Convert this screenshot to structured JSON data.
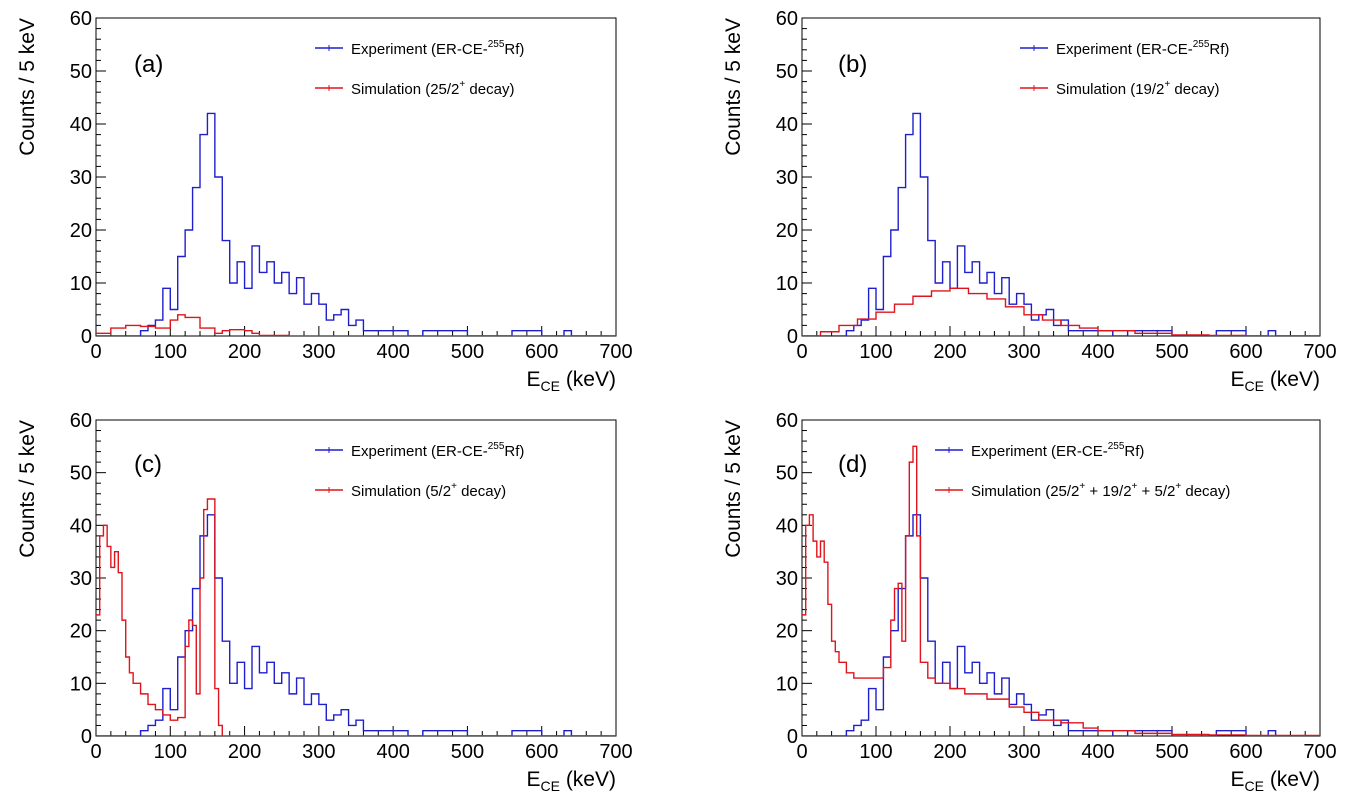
{
  "figure": {
    "panels": [
      "(a)",
      "(b)",
      "(c)",
      "(d)"
    ]
  },
  "colors": {
    "experiment": "#1f1fcc",
    "simulation": "#e0141c",
    "axis": "#000000"
  },
  "chart_data": [
    {
      "type": "line",
      "panel_label": "(a)",
      "xlabel": "E",
      "xlabel_sub": "CE",
      "xlabel_unit": " (keV)",
      "ylabel": "Counts / 5 keV",
      "xlim": [
        0,
        700
      ],
      "ylim": [
        0,
        60
      ],
      "x_ticks": [
        "0",
        "100",
        "200",
        "300",
        "400",
        "500",
        "600",
        "700"
      ],
      "y_ticks": [
        "0",
        "10",
        "20",
        "30",
        "40",
        "50",
        "60"
      ],
      "legend": [
        {
          "pre": "Experiment (ER-CE-",
          "sup": "255",
          "post": "Rf)",
          "series": 0
        },
        {
          "pre": "Simulation (25/2",
          "sup": "+",
          "post": " decay)",
          "series": 1
        }
      ],
      "series": [
        {
          "name": "Experiment (ER-CE-255Rf)",
          "color": "#1f1fcc",
          "x": [
            0,
            50,
            60,
            70,
            80,
            90,
            100,
            110,
            120,
            130,
            140,
            150,
            160,
            170,
            180,
            190,
            200,
            210,
            220,
            230,
            240,
            250,
            260,
            270,
            280,
            290,
            300,
            310,
            320,
            330,
            340,
            350,
            360,
            380,
            400,
            420,
            440,
            460,
            480,
            500,
            520,
            560,
            600,
            630,
            640,
            700
          ],
          "y": [
            0,
            0,
            1,
            2,
            3,
            9,
            5,
            15,
            20,
            28,
            38,
            42,
            30,
            18,
            10,
            14,
            9,
            17,
            12,
            14,
            10,
            12,
            8,
            11,
            6,
            8,
            6,
            3,
            4,
            5,
            2,
            3,
            1,
            1,
            1,
            0,
            1,
            1,
            1,
            0,
            0,
            1,
            0,
            1,
            0,
            0
          ]
        },
        {
          "name": "Simulation (25/2+ decay)",
          "color": "#e0141c",
          "x": [
            0,
            20,
            40,
            60,
            80,
            100,
            110,
            120,
            140,
            160,
            170,
            180,
            200,
            210,
            220,
            260,
            300,
            700
          ],
          "y": [
            0.5,
            1.5,
            2,
            1.8,
            1.5,
            3,
            4,
            3.5,
            1.5,
            0.5,
            1,
            1.2,
            1,
            0.5,
            0.1,
            0,
            0,
            0
          ]
        }
      ]
    },
    {
      "type": "line",
      "panel_label": "(b)",
      "xlabel": "E",
      "xlabel_sub": "CE",
      "xlabel_unit": " (keV)",
      "ylabel": "Counts / 5 keV",
      "xlim": [
        0,
        700
      ],
      "ylim": [
        0,
        60
      ],
      "x_ticks": [
        "0",
        "100",
        "200",
        "300",
        "400",
        "500",
        "600",
        "700"
      ],
      "y_ticks": [
        "0",
        "10",
        "20",
        "30",
        "40",
        "50",
        "60"
      ],
      "legend": [
        {
          "pre": "Experiment (ER-CE-",
          "sup": "255",
          "post": "Rf)",
          "series": 0
        },
        {
          "pre": "Simulation (19/2",
          "sup": "+",
          "post": " decay)",
          "series": 1
        }
      ],
      "series": [
        {
          "name": "Experiment (ER-CE-255Rf)",
          "color": "#1f1fcc",
          "x": [
            0,
            50,
            60,
            70,
            80,
            90,
            100,
            110,
            120,
            130,
            140,
            150,
            160,
            170,
            180,
            190,
            200,
            210,
            220,
            230,
            240,
            250,
            260,
            270,
            280,
            290,
            300,
            310,
            320,
            330,
            340,
            350,
            360,
            380,
            400,
            420,
            440,
            460,
            480,
            500,
            520,
            560,
            600,
            630,
            640,
            700
          ],
          "y": [
            0,
            0,
            1,
            2,
            3,
            9,
            5,
            15,
            20,
            28,
            38,
            42,
            30,
            18,
            10,
            14,
            9,
            17,
            12,
            14,
            10,
            12,
            8,
            11,
            6,
            8,
            6,
            3,
            4,
            5,
            2,
            3,
            1,
            1,
            1,
            0,
            1,
            1,
            1,
            0,
            0,
            1,
            0,
            1,
            0,
            0
          ]
        },
        {
          "name": "Simulation (19/2+ decay)",
          "color": "#e0141c",
          "x": [
            0,
            25,
            50,
            75,
            100,
            125,
            150,
            175,
            200,
            225,
            250,
            275,
            300,
            325,
            350,
            375,
            400,
            450,
            500,
            550,
            600,
            700
          ],
          "y": [
            0,
            0.8,
            2,
            3.2,
            4.5,
            6,
            7.5,
            8.5,
            9,
            8,
            7,
            5.5,
            4,
            3,
            2,
            1.5,
            1,
            0.5,
            0.2,
            0.1,
            0,
            0
          ]
        }
      ]
    },
    {
      "type": "line",
      "panel_label": "(c)",
      "xlabel": "E",
      "xlabel_sub": "CE",
      "xlabel_unit": " (keV)",
      "ylabel": "Counts / 5 keV",
      "xlim": [
        0,
        700
      ],
      "ylim": [
        0,
        60
      ],
      "x_ticks": [
        "0",
        "100",
        "200",
        "300",
        "400",
        "500",
        "600",
        "700"
      ],
      "y_ticks": [
        "0",
        "10",
        "20",
        "30",
        "40",
        "50",
        "60"
      ],
      "legend": [
        {
          "pre": "Experiment (ER-CE-",
          "sup": "255",
          "post": "Rf)",
          "series": 0
        },
        {
          "pre": "Simulation (5/2",
          "sup": "+",
          "post": " decay)",
          "series": 1
        }
      ],
      "series": [
        {
          "name": "Experiment (ER-CE-255Rf)",
          "color": "#1f1fcc",
          "x": [
            0,
            50,
            60,
            70,
            80,
            90,
            100,
            110,
            120,
            130,
            140,
            150,
            160,
            170,
            180,
            190,
            200,
            210,
            220,
            230,
            240,
            250,
            260,
            270,
            280,
            290,
            300,
            310,
            320,
            330,
            340,
            350,
            360,
            380,
            400,
            420,
            440,
            460,
            480,
            500,
            520,
            560,
            600,
            630,
            640,
            700
          ],
          "y": [
            0,
            0,
            1,
            2,
            3,
            9,
            5,
            15,
            20,
            28,
            38,
            42,
            30,
            18,
            10,
            14,
            9,
            17,
            12,
            14,
            10,
            12,
            8,
            11,
            6,
            8,
            6,
            3,
            4,
            5,
            2,
            3,
            1,
            1,
            1,
            0,
            1,
            1,
            1,
            0,
            0,
            1,
            0,
            1,
            0,
            0
          ]
        },
        {
          "name": "Simulation (5/2+ decay)",
          "color": "#e0141c",
          "x": [
            0,
            5,
            10,
            15,
            20,
            25,
            30,
            35,
            40,
            45,
            50,
            60,
            70,
            80,
            90,
            100,
            110,
            120,
            125,
            130,
            135,
            140,
            145,
            150,
            155,
            160,
            165,
            170,
            200,
            700
          ],
          "y": [
            23,
            38,
            40,
            36,
            32,
            35,
            31,
            22,
            15,
            12,
            10,
            8,
            6,
            5,
            4,
            3,
            3.5,
            17,
            22,
            21,
            8,
            30,
            43,
            45,
            45,
            9,
            2,
            0,
            0,
            0
          ]
        }
      ]
    },
    {
      "type": "line",
      "panel_label": "(d)",
      "xlabel": "E",
      "xlabel_sub": "CE",
      "xlabel_unit": " (keV)",
      "ylabel": "Counts / 5 keV",
      "xlim": [
        0,
        700
      ],
      "ylim": [
        0,
        60
      ],
      "x_ticks": [
        "0",
        "100",
        "200",
        "300",
        "400",
        "500",
        "600",
        "700"
      ],
      "y_ticks": [
        "0",
        "10",
        "20",
        "30",
        "40",
        "50",
        "60"
      ],
      "legend": [
        {
          "pre": "Experiment (ER-CE-",
          "sup": "255",
          "post": "Rf)",
          "series": 0
        },
        {
          "pre": "Simulation (25/2",
          "sup": "+",
          "post": " + 19/2",
          "sup2": "+",
          "post2": " + 5/2",
          "sup3": "+",
          "post3": " decay)",
          "series": 1
        }
      ],
      "series": [
        {
          "name": "Experiment (ER-CE-255Rf)",
          "color": "#1f1fcc",
          "x": [
            0,
            50,
            60,
            70,
            80,
            90,
            100,
            110,
            120,
            130,
            140,
            150,
            160,
            170,
            180,
            190,
            200,
            210,
            220,
            230,
            240,
            250,
            260,
            270,
            280,
            290,
            300,
            310,
            320,
            330,
            340,
            350,
            360,
            380,
            400,
            420,
            440,
            460,
            480,
            500,
            520,
            560,
            600,
            630,
            640,
            700
          ],
          "y": [
            0,
            0,
            1,
            2,
            3,
            9,
            5,
            15,
            20,
            28,
            38,
            42,
            30,
            18,
            10,
            14,
            9,
            17,
            12,
            14,
            10,
            12,
            8,
            11,
            6,
            8,
            6,
            3,
            4,
            5,
            2,
            3,
            1,
            1,
            1,
            0,
            1,
            1,
            1,
            0,
            0,
            1,
            0,
            1,
            0,
            0
          ]
        },
        {
          "name": "Simulation (25/2+ + 19/2+ + 5/2+ decay)",
          "color": "#e0141c",
          "x": [
            0,
            5,
            10,
            15,
            20,
            25,
            30,
            35,
            40,
            45,
            50,
            60,
            70,
            80,
            90,
            100,
            110,
            120,
            125,
            130,
            135,
            140,
            145,
            150,
            155,
            160,
            170,
            180,
            200,
            220,
            250,
            280,
            300,
            320,
            350,
            380,
            400,
            450,
            500,
            550,
            600,
            700
          ],
          "y": [
            23,
            40,
            42,
            37,
            34,
            37,
            33,
            25,
            18,
            16,
            14,
            12,
            11,
            11,
            11,
            11,
            13,
            22,
            28,
            29,
            18,
            38,
            52,
            55,
            38,
            14,
            11,
            10,
            9,
            8,
            7,
            5.5,
            4.5,
            3,
            2.5,
            1.5,
            1,
            0.5,
            0.3,
            0.2,
            0.1,
            0
          ]
        }
      ]
    }
  ]
}
